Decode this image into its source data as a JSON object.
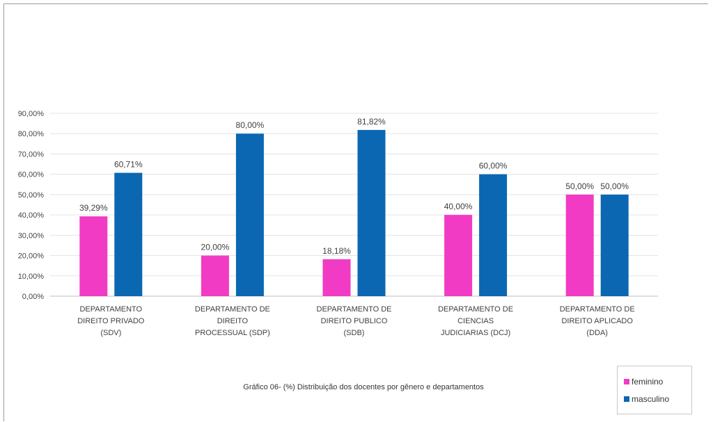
{
  "chart_data": {
    "type": "bar",
    "categories": [
      "DEPARTAMENTO DIREITO PRIVADO (SDV)",
      "DEPARTAMENTO DE DIREITO PROCESSUAL (SDP)",
      "DEPARTAMENTO DE DIREITO PUBLICO (SDB)",
      "DEPARTAMENTO DE CIENCIAS JUDICIARIAS (DCJ)",
      "DEPARTAMENTO DE DIREITO APLICADO (DDA)"
    ],
    "category_label_lines": [
      [
        "DEPARTAMENTO",
        "DIREITO PRIVADO",
        "(SDV)"
      ],
      [
        "DEPARTAMENTO DE",
        "DIREITO",
        "PROCESSUAL (SDP)"
      ],
      [
        "DEPARTAMENTO DE",
        "DIREITO PUBLICO",
        "(SDB)"
      ],
      [
        "DEPARTAMENTO DE",
        "CIENCIAS",
        "JUDICIARIAS (DCJ)"
      ],
      [
        "DEPARTAMENTO DE",
        "DIREITO APLICADO",
        "(DDA)"
      ]
    ],
    "series": [
      {
        "name": "feminino",
        "color": "#f23bc4",
        "values": [
          39.29,
          20.0,
          18.18,
          40.0,
          50.0
        ],
        "labels": [
          "39,29%",
          "20,00%",
          "18,18%",
          "40,00%",
          "50,00%"
        ]
      },
      {
        "name": "masculino",
        "color": "#0b67b2",
        "values": [
          60.71,
          80.0,
          81.82,
          60.0,
          50.0
        ],
        "labels": [
          "60,71%",
          "80,00%",
          "81,82%",
          "60,00%",
          "50,00%"
        ]
      }
    ],
    "y_ticks": [
      "0,00%",
      "10,00%",
      "20,00%",
      "30,00%",
      "40,00%",
      "50,00%",
      "60,00%",
      "70,00%",
      "80,00%",
      "90,00%"
    ],
    "ylim": [
      0,
      90
    ],
    "grid": true,
    "legend_position": "bottom-right",
    "caption": "Gráfico 06- (%) Distribuição dos docentes por gênero e departamentos"
  }
}
